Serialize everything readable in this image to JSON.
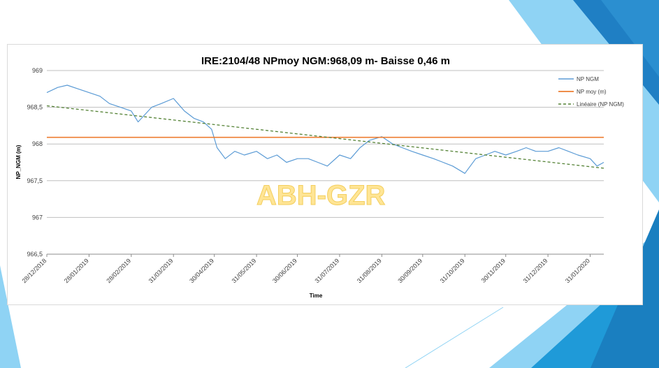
{
  "colors": {
    "series": "#5b9bd5",
    "mean": "#ed7d31",
    "trend": "#548235",
    "grid": "#bfbfbf",
    "slide_accent_dark": "#1f7fc4",
    "slide_accent_light": "#8fd3f4"
  },
  "watermark": "ABH-GZR",
  "chart_data": {
    "type": "line",
    "title": "IRE:2104/48 NPmoy NGM:968,09 m- Baisse 0,46 m",
    "xlabel": "Time",
    "ylabel": "NP_NGM (m)",
    "ylim": [
      966.5,
      969
    ],
    "yticks": [
      "966,5",
      "967",
      "967,5",
      "968",
      "968,5",
      "969"
    ],
    "yticks_values": [
      966.5,
      967,
      967.5,
      968,
      968.5,
      969
    ],
    "xlim": [
      "2018-12-28",
      "2020-02-10"
    ],
    "xticks": [
      "28/12/2018",
      "28/01/2019",
      "28/02/2019",
      "31/03/2019",
      "30/04/2019",
      "31/05/2019",
      "30/06/2019",
      "31/07/2019",
      "31/08/2019",
      "30/09/2019",
      "31/10/2019",
      "30/11/2019",
      "31/12/2019",
      "31/01/2020"
    ],
    "xticks_dates": [
      "2018-12-28",
      "2019-01-28",
      "2019-02-28",
      "2019-03-31",
      "2019-04-30",
      "2019-05-31",
      "2019-06-30",
      "2019-07-31",
      "2019-08-31",
      "2019-09-30",
      "2019-10-31",
      "2019-11-30",
      "2019-12-31",
      "2020-01-31"
    ],
    "grid": true,
    "legend_position": "top-right",
    "series": [
      {
        "name": "NP NGM",
        "type": "line",
        "x": [
          "2018-12-28",
          "2019-01-05",
          "2019-01-12",
          "2019-01-20",
          "2019-01-28",
          "2019-02-05",
          "2019-02-12",
          "2019-02-20",
          "2019-02-28",
          "2019-03-05",
          "2019-03-10",
          "2019-03-15",
          "2019-03-22",
          "2019-03-31",
          "2019-04-08",
          "2019-04-15",
          "2019-04-22",
          "2019-04-28",
          "2019-05-02",
          "2019-05-08",
          "2019-05-15",
          "2019-05-22",
          "2019-05-31",
          "2019-06-08",
          "2019-06-15",
          "2019-06-22",
          "2019-06-30",
          "2019-07-08",
          "2019-07-15",
          "2019-07-22",
          "2019-07-31",
          "2019-08-08",
          "2019-08-15",
          "2019-08-22",
          "2019-08-31",
          "2019-09-08",
          "2019-09-15",
          "2019-09-22",
          "2019-09-30",
          "2019-10-08",
          "2019-10-15",
          "2019-10-22",
          "2019-10-31",
          "2019-11-08",
          "2019-11-15",
          "2019-11-22",
          "2019-11-30",
          "2019-12-08",
          "2019-12-15",
          "2019-12-22",
          "2019-12-31",
          "2020-01-08",
          "2020-01-15",
          "2020-01-22",
          "2020-01-31",
          "2020-02-05",
          "2020-02-10"
        ],
        "values": [
          968.7,
          968.77,
          968.8,
          968.75,
          968.7,
          968.65,
          968.55,
          968.5,
          968.45,
          968.3,
          968.4,
          968.5,
          968.55,
          968.62,
          968.45,
          968.35,
          968.3,
          968.2,
          967.95,
          967.8,
          967.9,
          967.85,
          967.9,
          967.8,
          967.85,
          967.75,
          967.8,
          967.8,
          967.75,
          967.7,
          967.85,
          967.8,
          967.95,
          968.05,
          968.1,
          968.0,
          967.95,
          967.9,
          967.85,
          967.8,
          967.75,
          967.7,
          967.6,
          967.8,
          967.85,
          967.9,
          967.85,
          967.9,
          967.95,
          967.9,
          967.9,
          967.95,
          967.9,
          967.85,
          967.8,
          967.7,
          967.75
        ]
      },
      {
        "name": "NP moy (m)",
        "type": "line",
        "x": [
          "2018-12-28",
          "2020-02-10"
        ],
        "values": [
          968.09,
          968.09
        ]
      },
      {
        "name": "Linéaire (NP NGM)",
        "type": "line",
        "style": "dashed",
        "x": [
          "2018-12-28",
          "2020-02-10"
        ],
        "values": [
          968.52,
          967.67
        ]
      }
    ]
  }
}
